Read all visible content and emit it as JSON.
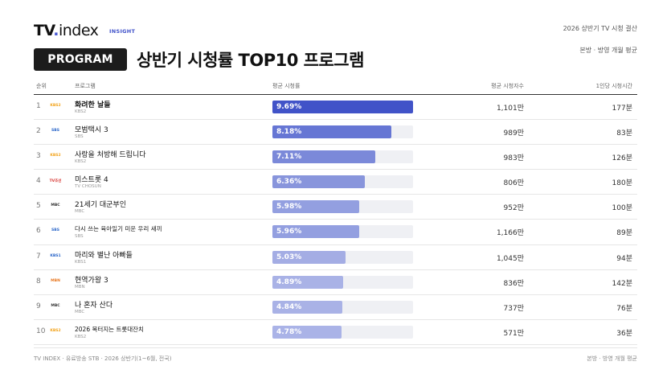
{
  "brand": {
    "tv": "TV",
    "dot": ".",
    "index": "index",
    "tag": "INSIGHT"
  },
  "header": {
    "period_label": "2026 상반기 TV 시청 결산",
    "badge": "PROGRAM",
    "title": "상반기 시청률 TOP10 프로그램",
    "subtitle": "본방 · 방영 개월 평균"
  },
  "table": {
    "columns": [
      "순위",
      "프로그램",
      "평균 시청률",
      "평균 시청자수",
      "1인당 시청시간"
    ],
    "rating_max": 9.69,
    "rows": [
      {
        "rank": "1",
        "logo": "KBS2",
        "logo_color": "#f2a31b",
        "name": "화려한 날들",
        "channel": "KBS2",
        "rating": 9.69,
        "rating_label": "9.69%",
        "viewers": "1,101만",
        "time": "177분",
        "bar_color": "#4153c8"
      },
      {
        "rank": "2",
        "logo": "SBS",
        "logo_color": "#2a66c9",
        "name": "모범택시 3",
        "channel": "SBS",
        "rating": 8.18,
        "rating_label": "8.18%",
        "viewers": "989만",
        "time": "83분",
        "bar_color": "#6676d4"
      },
      {
        "rank": "3",
        "logo": "KBS2",
        "logo_color": "#f2a31b",
        "name": "사랑을 처방해 드립니다",
        "channel": "KBS2",
        "rating": 7.11,
        "rating_label": "7.11%",
        "viewers": "983만",
        "time": "126분",
        "bar_color": "#7b89d9"
      },
      {
        "rank": "4",
        "logo": "TV조선",
        "logo_color": "#d6322e",
        "name": "미스트롯 4",
        "channel": "TV CHOSUN",
        "rating": 6.36,
        "rating_label": "6.36%",
        "viewers": "806만",
        "time": "180분",
        "bar_color": "#8895dc"
      },
      {
        "rank": "5",
        "logo": "MBC",
        "logo_color": "#333333",
        "name": "21세기 대군부인",
        "channel": "MBC",
        "rating": 5.98,
        "rating_label": "5.98%",
        "viewers": "952만",
        "time": "100분",
        "bar_color": "#939fe0"
      },
      {
        "rank": "6",
        "logo": "SBS",
        "logo_color": "#2a66c9",
        "name": "다시 쓰는 육아일기 미운 우리 새끼",
        "channel": "SBS",
        "rating": 5.96,
        "rating_label": "5.96%",
        "viewers": "1,166만",
        "time": "89분",
        "bar_color": "#939fe0"
      },
      {
        "rank": "7",
        "logo": "KBS1",
        "logo_color": "#2a66c9",
        "name": "마리와 별난 아빠들",
        "channel": "KBS1",
        "rating": 5.03,
        "rating_label": "5.03%",
        "viewers": "1,045만",
        "time": "94분",
        "bar_color": "#a4ade4"
      },
      {
        "rank": "8",
        "logo": "MBN",
        "logo_color": "#e8761e",
        "name": "현역가왕 3",
        "channel": "MBN",
        "rating": 4.89,
        "rating_label": "4.89%",
        "viewers": "836만",
        "time": "142분",
        "bar_color": "#a9b2e6"
      },
      {
        "rank": "9",
        "logo": "MBC",
        "logo_color": "#333333",
        "name": "나 혼자 산다",
        "channel": "MBC",
        "rating": 4.84,
        "rating_label": "4.84%",
        "viewers": "737만",
        "time": "76분",
        "bar_color": "#a9b2e6"
      },
      {
        "rank": "10",
        "logo": "KBS2",
        "logo_color": "#f2a31b",
        "name": "2026 복터지는 트롯대잔치",
        "channel": "KBS2",
        "rating": 4.78,
        "rating_label": "4.78%",
        "viewers": "571만",
        "time": "36분",
        "bar_color": "#aab3e7"
      }
    ]
  },
  "footer": {
    "source": "TV INDEX · 유료방송 STB · 2026 상반기(1~6월, 전국)",
    "note": "본방 · 방영 개월 평균"
  }
}
